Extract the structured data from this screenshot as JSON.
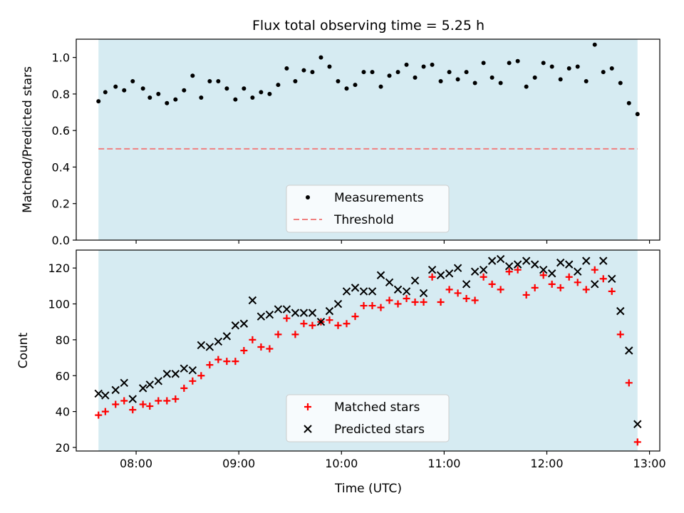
{
  "figure": {
    "title": "Flux total observing time = 5.25 h",
    "xlabel": "Time (UTC)"
  },
  "colors": {
    "span_fill": "#add8e6",
    "measurements": "#000000",
    "threshold": "#f08080",
    "matched": "#ff0000",
    "predicted": "#000000"
  },
  "chart_data": [
    {
      "type": "scatter",
      "ylabel": "Matched/Predicted stars",
      "xlim": [
        "07:25",
        "13:06"
      ],
      "ylim": [
        0.0,
        1.1
      ],
      "x_ticks": [
        "08:00",
        "09:00",
        "10:00",
        "11:00",
        "12:00",
        "13:00"
      ],
      "y_ticks": [
        "0.0",
        "0.2",
        "0.4",
        "0.6",
        "0.8",
        "1.0"
      ],
      "shaded_span": [
        "07:38",
        "12:53"
      ],
      "legend_position": "lower center",
      "threshold": {
        "name": "Threshold",
        "value": 0.5
      },
      "series": [
        {
          "name": "Measurements",
          "points": [
            [
              "07:38",
              0.76
            ],
            [
              "07:42",
              0.81
            ],
            [
              "07:48",
              0.84
            ],
            [
              "07:53",
              0.82
            ],
            [
              "07:58",
              0.87
            ],
            [
              "08:04",
              0.83
            ],
            [
              "08:08",
              0.78
            ],
            [
              "08:13",
              0.8
            ],
            [
              "08:18",
              0.75
            ],
            [
              "08:23",
              0.77
            ],
            [
              "08:28",
              0.82
            ],
            [
              "08:33",
              0.9
            ],
            [
              "08:38",
              0.78
            ],
            [
              "08:43",
              0.87
            ],
            [
              "08:48",
              0.87
            ],
            [
              "08:53",
              0.83
            ],
            [
              "08:58",
              0.77
            ],
            [
              "09:03",
              0.83
            ],
            [
              "09:08",
              0.78
            ],
            [
              "09:13",
              0.81
            ],
            [
              "09:18",
              0.8
            ],
            [
              "09:23",
              0.85
            ],
            [
              "09:28",
              0.94
            ],
            [
              "09:33",
              0.87
            ],
            [
              "09:38",
              0.93
            ],
            [
              "09:43",
              0.92
            ],
            [
              "09:48",
              1.0
            ],
            [
              "09:53",
              0.95
            ],
            [
              "09:58",
              0.87
            ],
            [
              "10:03",
              0.83
            ],
            [
              "10:08",
              0.85
            ],
            [
              "10:13",
              0.92
            ],
            [
              "10:18",
              0.92
            ],
            [
              "10:23",
              0.84
            ],
            [
              "10:28",
              0.9
            ],
            [
              "10:33",
              0.92
            ],
            [
              "10:38",
              0.96
            ],
            [
              "10:43",
              0.89
            ],
            [
              "10:48",
              0.95
            ],
            [
              "10:53",
              0.96
            ],
            [
              "10:58",
              0.87
            ],
            [
              "11:03",
              0.92
            ],
            [
              "11:08",
              0.88
            ],
            [
              "11:13",
              0.92
            ],
            [
              "11:18",
              0.86
            ],
            [
              "11:23",
              0.97
            ],
            [
              "11:28",
              0.89
            ],
            [
              "11:33",
              0.86
            ],
            [
              "11:38",
              0.97
            ],
            [
              "11:43",
              0.98
            ],
            [
              "11:48",
              0.84
            ],
            [
              "11:53",
              0.89
            ],
            [
              "11:58",
              0.97
            ],
            [
              "12:03",
              0.95
            ],
            [
              "12:08",
              0.88
            ],
            [
              "12:13",
              0.94
            ],
            [
              "12:18",
              0.95
            ],
            [
              "12:23",
              0.87
            ],
            [
              "12:28",
              1.07
            ],
            [
              "12:33",
              0.92
            ],
            [
              "12:38",
              0.94
            ],
            [
              "12:43",
              0.86
            ],
            [
              "12:48",
              0.75
            ],
            [
              "12:53",
              0.69
            ]
          ]
        }
      ]
    },
    {
      "type": "scatter",
      "ylabel": "Count",
      "xlim": [
        "07:25",
        "13:06"
      ],
      "ylim": [
        18,
        130
      ],
      "x_ticks": [
        "08:00",
        "09:00",
        "10:00",
        "11:00",
        "12:00",
        "13:00"
      ],
      "y_ticks": [
        "20",
        "40",
        "60",
        "80",
        "100",
        "120"
      ],
      "shaded_span": [
        "07:38",
        "12:53"
      ],
      "legend_position": "lower center",
      "series": [
        {
          "name": "Matched stars",
          "marker": "+",
          "points": [
            [
              "07:38",
              38
            ],
            [
              "07:42",
              40
            ],
            [
              "07:48",
              44
            ],
            [
              "07:53",
              46
            ],
            [
              "07:58",
              41
            ],
            [
              "08:04",
              44
            ],
            [
              "08:08",
              43
            ],
            [
              "08:13",
              46
            ],
            [
              "08:18",
              46
            ],
            [
              "08:23",
              47
            ],
            [
              "08:28",
              53
            ],
            [
              "08:33",
              57
            ],
            [
              "08:38",
              60
            ],
            [
              "08:43",
              66
            ],
            [
              "08:48",
              69
            ],
            [
              "08:53",
              68
            ],
            [
              "08:58",
              68
            ],
            [
              "09:03",
              74
            ],
            [
              "09:08",
              80
            ],
            [
              "09:13",
              76
            ],
            [
              "09:18",
              75
            ],
            [
              "09:23",
              83
            ],
            [
              "09:28",
              92
            ],
            [
              "09:33",
              83
            ],
            [
              "09:38",
              89
            ],
            [
              "09:43",
              88
            ],
            [
              "09:48",
              90
            ],
            [
              "09:53",
              91
            ],
            [
              "09:58",
              88
            ],
            [
              "10:03",
              89
            ],
            [
              "10:08",
              93
            ],
            [
              "10:13",
              99
            ],
            [
              "10:18",
              99
            ],
            [
              "10:23",
              98
            ],
            [
              "10:28",
              102
            ],
            [
              "10:33",
              100
            ],
            [
              "10:38",
              103
            ],
            [
              "10:43",
              101
            ],
            [
              "10:48",
              101
            ],
            [
              "10:53",
              115
            ],
            [
              "10:58",
              101
            ],
            [
              "11:03",
              108
            ],
            [
              "11:08",
              106
            ],
            [
              "11:13",
              103
            ],
            [
              "11:18",
              102
            ],
            [
              "11:23",
              115
            ],
            [
              "11:28",
              111
            ],
            [
              "11:33",
              108
            ],
            [
              "11:38",
              118
            ],
            [
              "11:43",
              119
            ],
            [
              "11:48",
              105
            ],
            [
              "11:53",
              109
            ],
            [
              "11:58",
              116
            ],
            [
              "12:03",
              111
            ],
            [
              "12:08",
              109
            ],
            [
              "12:13",
              115
            ],
            [
              "12:18",
              112
            ],
            [
              "12:23",
              108
            ],
            [
              "12:28",
              119
            ],
            [
              "12:33",
              114
            ],
            [
              "12:38",
              107
            ],
            [
              "12:43",
              83
            ],
            [
              "12:48",
              56
            ],
            [
              "12:53",
              23
            ]
          ]
        },
        {
          "name": "Predicted stars",
          "marker": "x",
          "points": [
            [
              "07:38",
              50
            ],
            [
              "07:42",
              49
            ],
            [
              "07:48",
              52
            ],
            [
              "07:53",
              56
            ],
            [
              "07:58",
              47
            ],
            [
              "08:04",
              53
            ],
            [
              "08:08",
              55
            ],
            [
              "08:13",
              57
            ],
            [
              "08:18",
              61
            ],
            [
              "08:23",
              61
            ],
            [
              "08:28",
              64
            ],
            [
              "08:33",
              63
            ],
            [
              "08:38",
              77
            ],
            [
              "08:43",
              76
            ],
            [
              "08:48",
              79
            ],
            [
              "08:53",
              82
            ],
            [
              "08:58",
              88
            ],
            [
              "09:03",
              89
            ],
            [
              "09:08",
              102
            ],
            [
              "09:13",
              93
            ],
            [
              "09:18",
              94
            ],
            [
              "09:23",
              97
            ],
            [
              "09:28",
              97
            ],
            [
              "09:33",
              95
            ],
            [
              "09:38",
              95
            ],
            [
              "09:43",
              95
            ],
            [
              "09:48",
              90
            ],
            [
              "09:53",
              96
            ],
            [
              "09:58",
              100
            ],
            [
              "10:03",
              107
            ],
            [
              "10:08",
              109
            ],
            [
              "10:13",
              107
            ],
            [
              "10:18",
              107
            ],
            [
              "10:23",
              116
            ],
            [
              "10:28",
              112
            ],
            [
              "10:33",
              108
            ],
            [
              "10:38",
              107
            ],
            [
              "10:43",
              113
            ],
            [
              "10:48",
              106
            ],
            [
              "10:53",
              119
            ],
            [
              "10:58",
              116
            ],
            [
              "11:03",
              117
            ],
            [
              "11:08",
              120
            ],
            [
              "11:13",
              111
            ],
            [
              "11:18",
              118
            ],
            [
              "11:23",
              119
            ],
            [
              "11:28",
              124
            ],
            [
              "11:33",
              125
            ],
            [
              "11:38",
              121
            ],
            [
              "11:43",
              122
            ],
            [
              "11:48",
              124
            ],
            [
              "11:53",
              122
            ],
            [
              "11:58",
              119
            ],
            [
              "12:03",
              117
            ],
            [
              "12:08",
              123
            ],
            [
              "12:13",
              122
            ],
            [
              "12:18",
              118
            ],
            [
              "12:23",
              124
            ],
            [
              "12:28",
              111
            ],
            [
              "12:33",
              124
            ],
            [
              "12:38",
              114
            ],
            [
              "12:43",
              96
            ],
            [
              "12:48",
              74
            ],
            [
              "12:53",
              33
            ]
          ]
        }
      ]
    }
  ]
}
